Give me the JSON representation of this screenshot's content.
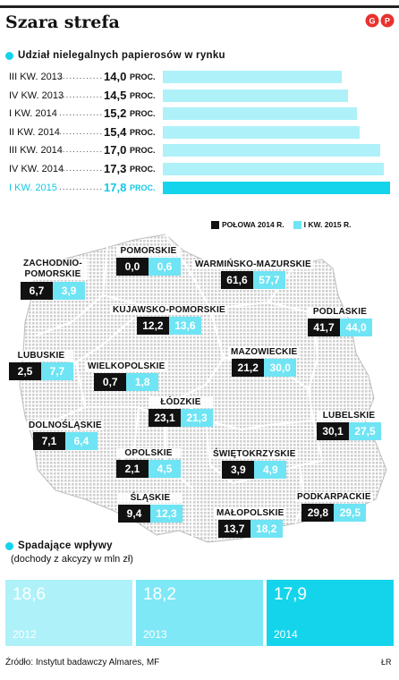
{
  "title": "Szara strefa",
  "logo_text": "GP",
  "share_section": {
    "heading": "Udział nielegalnych papierosów w rynku",
    "dots": "......................",
    "unit": "PROC."
  },
  "legend": {
    "series_a": "POŁOWA 2014 R.",
    "series_b": "I KW. 2015 R.",
    "color_a": "#111111",
    "color_b": "#6ee4f4"
  },
  "regions": [
    {
      "name": "POMORSKIE",
      "a": "0,0",
      "b": "0,6"
    },
    {
      "name": "ZACHODNIO-POMORSKIE",
      "a": "6,7",
      "b": "3,9"
    },
    {
      "name": "WARMIŃSKO-MAZURSKIE",
      "a": "61,6",
      "b": "57,7"
    },
    {
      "name": "KUJAWSKO-POMORSKIE",
      "a": "12,2",
      "b": "13,6"
    },
    {
      "name": "PODLASKIE",
      "a": "41,7",
      "b": "44,0"
    },
    {
      "name": "LUBUSKIE",
      "a": "2,5",
      "b": "7,7"
    },
    {
      "name": "WIELKOPOLSKIE",
      "a": "0,7",
      "b": "1,8"
    },
    {
      "name": "MAZOWIECKIE",
      "a": "21,2",
      "b": "30,0"
    },
    {
      "name": "ŁÓDZKIE",
      "a": "23,1",
      "b": "21,3"
    },
    {
      "name": "DOLNOŚLĄSKIE",
      "a": "7,1",
      "b": "6,4"
    },
    {
      "name": "LUBELSKIE",
      "a": "30,1",
      "b": "27,5"
    },
    {
      "name": "OPOLSKIE",
      "a": "2,1",
      "b": "4,5"
    },
    {
      "name": "ŚWIĘTOKRZYSKIE",
      "a": "3,9",
      "b": "4,9"
    },
    {
      "name": "ŚLĄSKIE",
      "a": "9,4",
      "b": "12,3"
    },
    {
      "name": "MAŁOPOLSKIE",
      "a": "13,7",
      "b": "18,2"
    },
    {
      "name": "PODKARPACKIE",
      "a": "29,8",
      "b": "29,5"
    }
  ],
  "income_section": {
    "heading": "Spadające wpływy",
    "subheading": "(dochody z akcyzy w mln zł)",
    "tiles": [
      {
        "value": "18,6",
        "year": "2012",
        "color": "#aef1f9"
      },
      {
        "value": "18,2",
        "year": "2013",
        "color": "#7ee8f6"
      },
      {
        "value": "17,9",
        "year": "2014",
        "color": "#14d4ec"
      }
    ]
  },
  "source": "Źródło: Instytut badawczy Almares, MF",
  "signature": "ŁR",
  "chart_data": [
    {
      "type": "bar",
      "title": "Udział nielegalnych papierosów w rynku",
      "orientation": "horizontal",
      "categories": [
        "III KW. 2013",
        "IV KW. 2013",
        "I KW. 2014",
        "II KW. 2014",
        "III KW. 2014",
        "IV KW. 2014",
        "I KW. 2015"
      ],
      "values": [
        14.0,
        14.5,
        15.2,
        15.4,
        17.0,
        17.3,
        17.8
      ],
      "value_labels": [
        "14,0",
        "14,5",
        "15,2",
        "15,4",
        "17,0",
        "17,3",
        "17,8"
      ],
      "xlim": [
        0,
        17.8
      ],
      "highlight_index": 6,
      "colors": {
        "bar": "#aef1f9",
        "highlight": "#14d4ec"
      }
    },
    {
      "type": "bar",
      "title": "Spadające wpływy",
      "subtitle": "(dochody z akcyzy w mln zł)",
      "categories": [
        "2012",
        "2013",
        "2014"
      ],
      "values": [
        18.6,
        18.2,
        17.9
      ]
    }
  ]
}
